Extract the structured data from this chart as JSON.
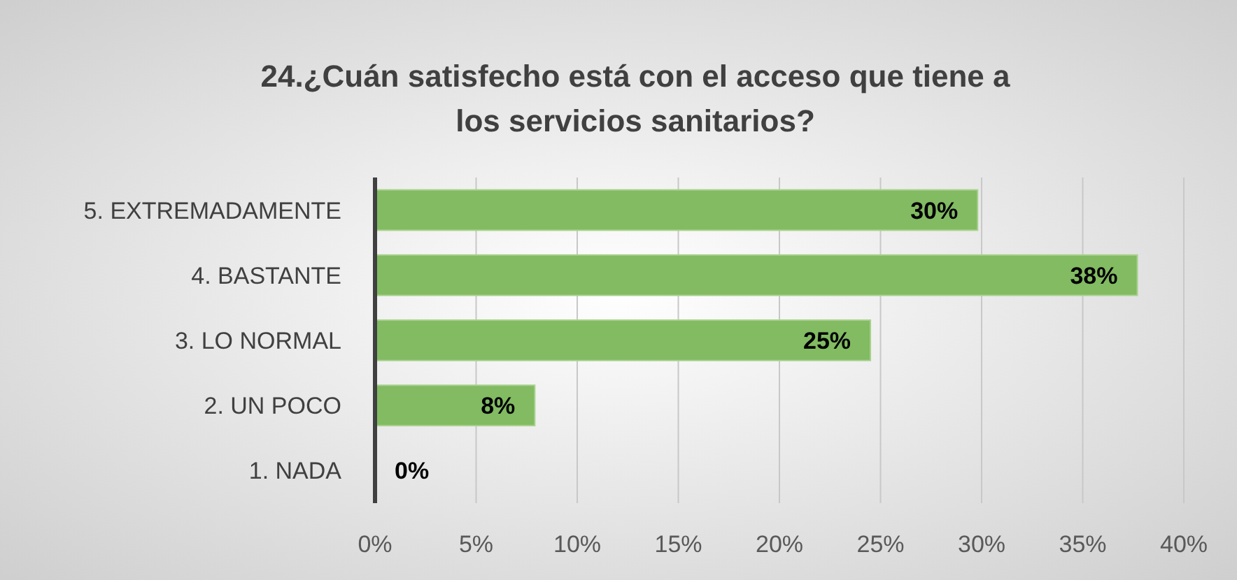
{
  "chart_data": {
    "type": "bar",
    "orientation": "horizontal",
    "title": "24.¿Cuán satisfecho está con el acceso que tiene a los servicios sanitarios?",
    "categories": [
      "5. EXTREMADAMENTE",
      "4. BASTANTE",
      "3. LO NORMAL",
      "2. UN POCO",
      "1. NADA"
    ],
    "values": [
      29.8,
      37.7,
      24.5,
      7.9,
      0
    ],
    "value_labels": [
      "30%",
      "38%",
      "25%",
      "8%",
      "0%"
    ],
    "color": "#82bb62",
    "xlim": [
      0,
      40
    ],
    "xticks": [
      {
        "value": 0,
        "label": "0%"
      },
      {
        "value": 5,
        "label": "5%"
      },
      {
        "value": 10,
        "label": "10%"
      },
      {
        "value": 15,
        "label": "15%"
      },
      {
        "value": 20,
        "label": "20%"
      },
      {
        "value": 25,
        "label": "25%"
      },
      {
        "value": 30,
        "label": "30%"
      },
      {
        "value": 35,
        "label": "35%"
      },
      {
        "value": 40,
        "label": "40%"
      }
    ],
    "grid": "x"
  }
}
